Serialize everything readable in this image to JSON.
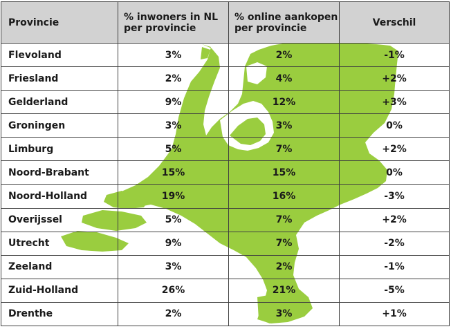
{
  "headers": [
    "Provincie",
    "% inwoners in NL per provincie",
    "% online aankopen per provincie",
    "Verschil"
  ],
  "rows": [
    [
      "Flevoland",
      "3%",
      "2%",
      "-1%"
    ],
    [
      "Friesland",
      "2%",
      "4%",
      "+2%"
    ],
    [
      "Gelderland",
      "9%",
      "12%",
      "+3%"
    ],
    [
      "Groningen",
      "3%",
      "3%",
      "0%"
    ],
    [
      "Limburg",
      "5%",
      "7%",
      "+2%"
    ],
    [
      "Noord-Brabant",
      "15%",
      "15%",
      "0%"
    ],
    [
      "Noord-Holland",
      "19%",
      "16%",
      "-3%"
    ],
    [
      "Overijssel",
      "5%",
      "7%",
      "+2%"
    ],
    [
      "Utrecht",
      "9%",
      "7%",
      "-2%"
    ],
    [
      "Zeeland",
      "3%",
      "2%",
      "-1%"
    ],
    [
      "Zuid-Holland",
      "26%",
      "21%",
      "-5%"
    ],
    [
      "Drenthe",
      "2%",
      "3%",
      "+1%"
    ]
  ],
  "colors": {
    "map_fill": "#9acd3f",
    "header_bg": "#d2d2d2",
    "border": "#3f3f3f"
  },
  "background_image": "netherlands-map-silhouette"
}
